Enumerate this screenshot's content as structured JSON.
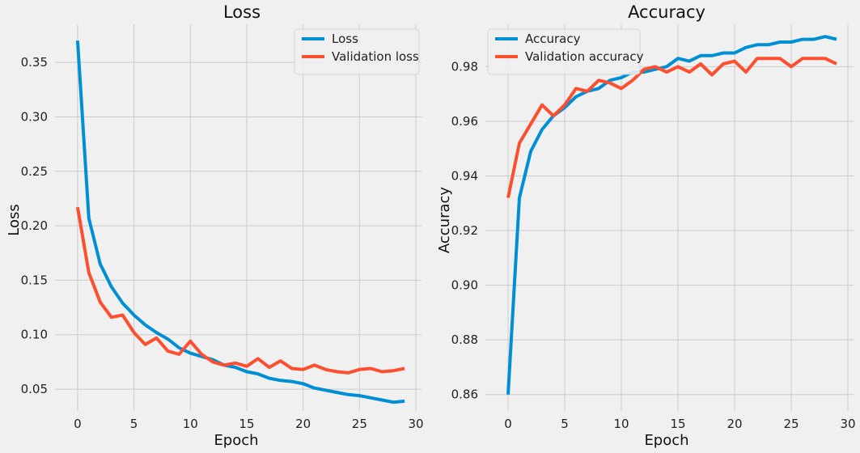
{
  "chart_data": [
    {
      "type": "line",
      "title": "Loss",
      "xlabel": "Epoch",
      "ylabel": "Loss",
      "xlim": [
        -2,
        30.5
      ],
      "ylim": [
        0.03,
        0.385
      ],
      "xticks": [
        0,
        5,
        10,
        15,
        20,
        25,
        30
      ],
      "yticks": [
        0.05,
        0.1,
        0.15,
        0.2,
        0.25,
        0.3,
        0.35
      ],
      "ytick_labels": [
        "0.05",
        "0.10",
        "0.15",
        "0.20",
        "0.25",
        "0.30",
        "0.35"
      ],
      "grid": true,
      "legend_position": "top-right",
      "x": [
        0,
        1,
        2,
        3,
        4,
        5,
        6,
        7,
        8,
        9,
        10,
        11,
        12,
        13,
        14,
        15,
        16,
        17,
        18,
        19,
        20,
        21,
        22,
        23,
        24,
        25,
        26,
        27,
        28,
        29
      ],
      "series": [
        {
          "name": "Loss",
          "color": "#008fd5",
          "values": [
            0.37,
            0.207,
            0.165,
            0.144,
            0.129,
            0.118,
            0.109,
            0.102,
            0.096,
            0.088,
            0.083,
            0.08,
            0.077,
            0.072,
            0.07,
            0.066,
            0.064,
            0.06,
            0.058,
            0.057,
            0.055,
            0.051,
            0.049,
            0.047,
            0.045,
            0.044,
            0.042,
            0.04,
            0.038,
            0.039
          ]
        },
        {
          "name": "Validation loss",
          "color": "#fc4f30",
          "values": [
            0.217,
            0.157,
            0.13,
            0.116,
            0.118,
            0.102,
            0.091,
            0.097,
            0.085,
            0.082,
            0.094,
            0.082,
            0.075,
            0.072,
            0.074,
            0.071,
            0.078,
            0.07,
            0.076,
            0.069,
            0.068,
            0.072,
            0.068,
            0.066,
            0.065,
            0.068,
            0.069,
            0.066,
            0.067,
            0.069
          ]
        }
      ]
    },
    {
      "type": "line",
      "title": "Accuracy",
      "xlabel": "Epoch",
      "ylabel": "Accuracy",
      "xlim": [
        -2,
        30.5
      ],
      "ylim": [
        0.854,
        0.9955
      ],
      "xticks": [
        0,
        5,
        10,
        15,
        20,
        25,
        30
      ],
      "yticks": [
        0.86,
        0.88,
        0.9,
        0.92,
        0.94,
        0.96,
        0.98
      ],
      "ytick_labels": [
        "0.86",
        "0.88",
        "0.90",
        "0.92",
        "0.94",
        "0.96",
        "0.98"
      ],
      "grid": true,
      "legend_position": "top-left",
      "x": [
        0,
        1,
        2,
        3,
        4,
        5,
        6,
        7,
        8,
        9,
        10,
        11,
        12,
        13,
        14,
        15,
        16,
        17,
        18,
        19,
        20,
        21,
        22,
        23,
        24,
        25,
        26,
        27,
        28,
        29
      ],
      "series": [
        {
          "name": "Accuracy",
          "color": "#008fd5",
          "values": [
            0.86,
            0.932,
            0.949,
            0.957,
            0.962,
            0.965,
            0.969,
            0.971,
            0.972,
            0.975,
            0.976,
            0.978,
            0.978,
            0.979,
            0.98,
            0.983,
            0.982,
            0.984,
            0.984,
            0.985,
            0.985,
            0.987,
            0.988,
            0.988,
            0.989,
            0.989,
            0.99,
            0.99,
            0.991,
            0.99
          ]
        },
        {
          "name": "Validation accuracy",
          "color": "#fc4f30",
          "values": [
            0.932,
            0.952,
            0.959,
            0.966,
            0.962,
            0.966,
            0.972,
            0.971,
            0.975,
            0.974,
            0.972,
            0.975,
            0.979,
            0.98,
            0.978,
            0.98,
            0.978,
            0.981,
            0.977,
            0.981,
            0.982,
            0.978,
            0.983,
            0.983,
            0.983,
            0.98,
            0.983,
            0.983,
            0.983,
            0.981
          ]
        }
      ]
    }
  ]
}
